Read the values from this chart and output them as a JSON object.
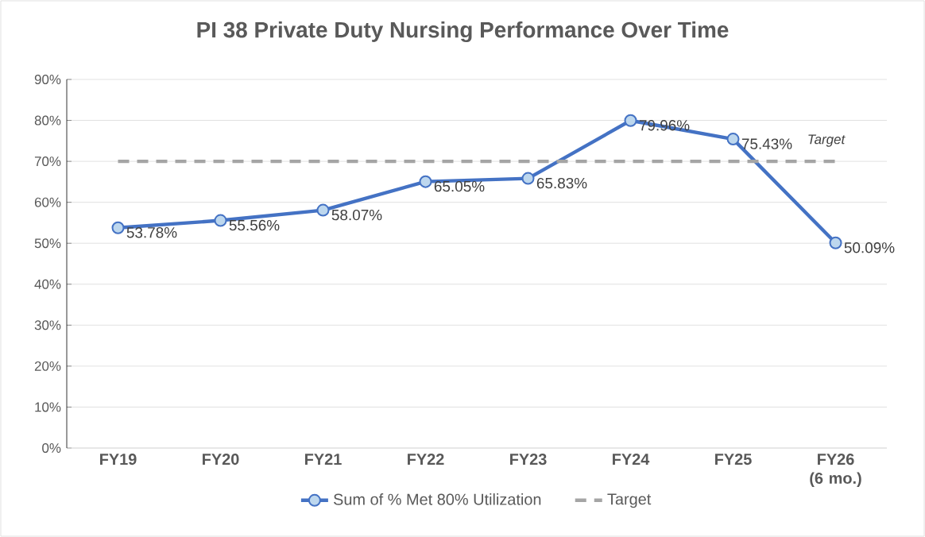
{
  "chart_data": {
    "type": "line",
    "title": "PI 38 Private Duty Nursing Performance Over Time",
    "categories": [
      "FY19",
      "FY20",
      "FY21",
      "FY22",
      "FY23",
      "FY24",
      "FY25",
      "FY26 (6 mo.)"
    ],
    "series": [
      {
        "name": "Sum of % Met 80% Utilization",
        "color": "#4472c4",
        "values": [
          53.78,
          55.56,
          58.07,
          65.05,
          65.83,
          79.96,
          75.43,
          50.09
        ],
        "value_labels": [
          "53.78%",
          "55.56%",
          "58.07%",
          "65.05%",
          "65.83%",
          "79.96%",
          "75.43%",
          "50.09%"
        ]
      },
      {
        "name": "Target",
        "color": "#a5a5a5",
        "line_style": "dashed",
        "marker": "none",
        "values": [
          70,
          70,
          70,
          70,
          70,
          70,
          70,
          70
        ]
      }
    ],
    "annotations": [
      {
        "text": "Target",
        "x": "FY26 (6 mo.)",
        "y": 70
      }
    ],
    "ylim": [
      0,
      90
    ],
    "yticks": [
      {
        "value": 0,
        "label": "0%"
      },
      {
        "value": 10,
        "label": "10%"
      },
      {
        "value": 20,
        "label": "20%"
      },
      {
        "value": 30,
        "label": "30%"
      },
      {
        "value": 40,
        "label": "40%"
      },
      {
        "value": 50,
        "label": "50%"
      },
      {
        "value": 60,
        "label": "60%"
      },
      {
        "value": 70,
        "label": "70%"
      },
      {
        "value": 80,
        "label": "80%"
      },
      {
        "value": 90,
        "label": "90%"
      }
    ],
    "grid": "y",
    "legend": "bottom",
    "marker": "circle",
    "line_style": "solid"
  }
}
